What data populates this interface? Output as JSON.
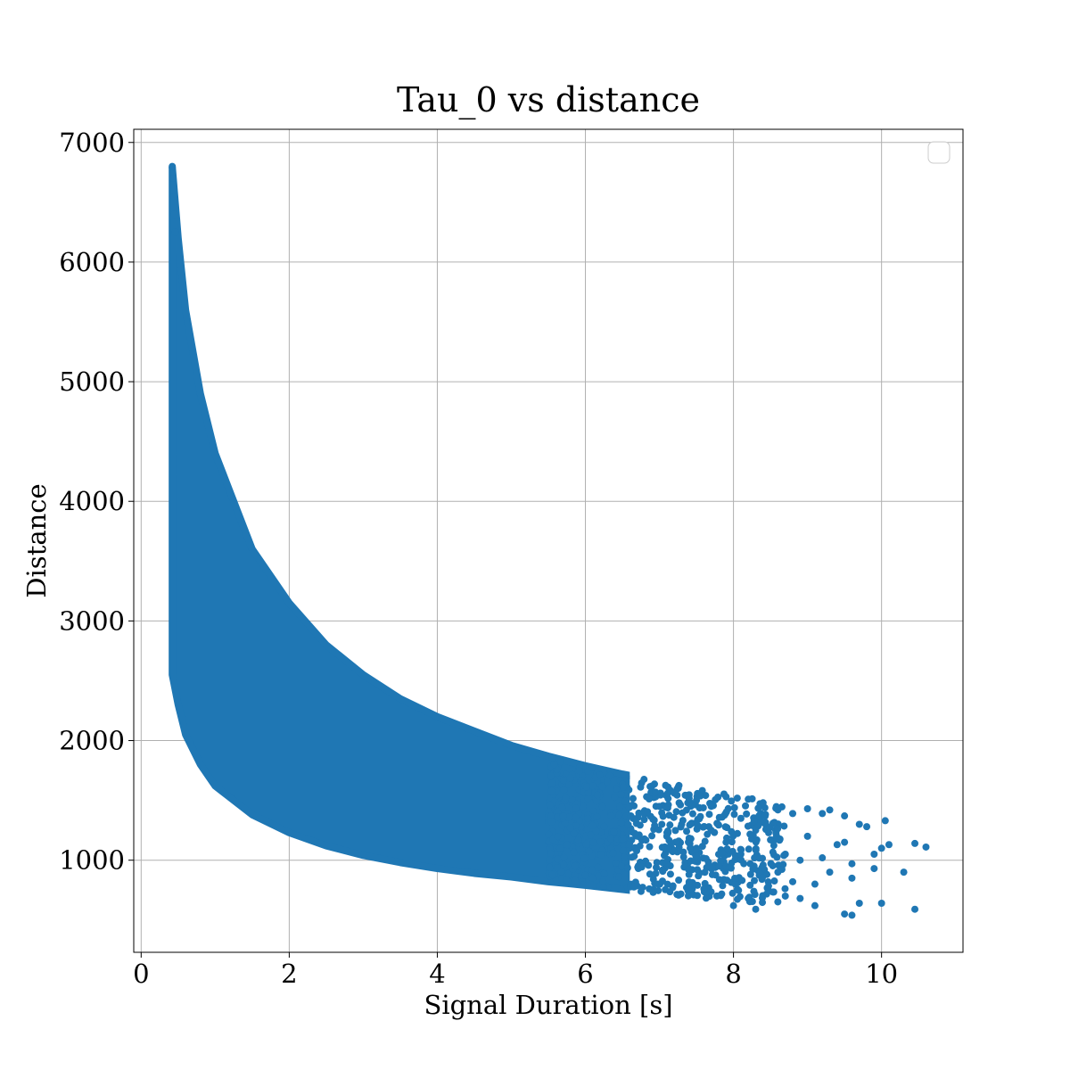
{
  "chart_data": {
    "type": "scatter",
    "title": "Tau_0 vs distance",
    "xlabel": "Signal Duration [s]",
    "ylabel": "Distance",
    "xlim": [
      -0.1,
      11.1
    ],
    "ylim": [
      230,
      7110
    ],
    "xticks": [
      0,
      2,
      4,
      6,
      8,
      10
    ],
    "yticks": [
      1000,
      2000,
      3000,
      4000,
      5000,
      6000,
      7000
    ],
    "grid": true,
    "legend": {
      "placement": "upper-right",
      "entries": []
    },
    "marker_color": "#1f77b4",
    "envelope": {
      "description_upper": [
        [
          0.42,
          6800
        ],
        [
          0.5,
          6200
        ],
        [
          0.6,
          5600
        ],
        [
          0.8,
          4900
        ],
        [
          1.0,
          4400
        ],
        [
          1.5,
          3600
        ],
        [
          2.0,
          3150
        ],
        [
          2.5,
          2800
        ],
        [
          3.0,
          2550
        ],
        [
          3.5,
          2350
        ],
        [
          4.0,
          2200
        ],
        [
          4.5,
          2080
        ],
        [
          5.0,
          1960
        ],
        [
          5.5,
          1870
        ],
        [
          6.0,
          1790
        ],
        [
          6.5,
          1720
        ],
        [
          7.0,
          1660
        ],
        [
          7.5,
          1600
        ],
        [
          8.0,
          1540
        ],
        [
          8.5,
          1490
        ],
        [
          9.0,
          1440
        ],
        [
          9.5,
          1380
        ],
        [
          10.0,
          1320
        ]
      ],
      "description_lower": [
        [
          0.42,
          2550
        ],
        [
          0.5,
          2300
        ],
        [
          0.6,
          2050
        ],
        [
          0.8,
          1800
        ],
        [
          1.0,
          1620
        ],
        [
          1.5,
          1380
        ],
        [
          2.0,
          1230
        ],
        [
          2.5,
          1120
        ],
        [
          3.0,
          1040
        ],
        [
          3.5,
          980
        ],
        [
          4.0,
          930
        ],
        [
          4.5,
          890
        ],
        [
          5.0,
          860
        ],
        [
          5.5,
          820
        ],
        [
          6.0,
          790
        ],
        [
          7.0,
          720
        ],
        [
          8.0,
          660
        ],
        [
          9.0,
          600
        ],
        [
          10.0,
          560
        ]
      ]
    },
    "dense_points": [
      [
        0.42,
        6790
      ],
      [
        0.43,
        6700
      ],
      [
        0.44,
        6550
      ],
      [
        0.45,
        6400
      ],
      [
        0.46,
        6250
      ]
    ],
    "outlier_points": [
      [
        6.9,
        1620
      ],
      [
        7.0,
        1450
      ],
      [
        7.1,
        1200
      ],
      [
        7.1,
        980
      ],
      [
        7.2,
        1560
      ],
      [
        7.3,
        1300
      ],
      [
        7.4,
        880
      ],
      [
        7.5,
        1500
      ],
      [
        7.5,
        1100
      ],
      [
        7.6,
        760
      ],
      [
        7.7,
        1450
      ],
      [
        7.7,
        1250
      ],
      [
        7.8,
        950
      ],
      [
        7.9,
        1530
      ],
      [
        7.9,
        1150
      ],
      [
        8.0,
        620
      ],
      [
        8.1,
        1350
      ],
      [
        8.1,
        1050
      ],
      [
        8.2,
        1510
      ],
      [
        8.2,
        680
      ],
      [
        8.3,
        1250
      ],
      [
        8.3,
        590
      ],
      [
        8.4,
        1480
      ],
      [
        8.4,
        960
      ],
      [
        8.5,
        1170
      ],
      [
        8.6,
        1420
      ],
      [
        8.6,
        900
      ],
      [
        8.7,
        1050
      ],
      [
        8.7,
        700
      ],
      [
        8.8,
        1390
      ],
      [
        8.8,
        820
      ],
      [
        8.9,
        1000
      ],
      [
        8.9,
        680
      ],
      [
        9.0,
        1430
      ],
      [
        9.0,
        1200
      ],
      [
        9.1,
        800
      ],
      [
        9.1,
        620
      ],
      [
        9.2,
        1390
      ],
      [
        9.2,
        1020
      ],
      [
        9.3,
        1420
      ],
      [
        9.3,
        900
      ],
      [
        9.4,
        1130
      ],
      [
        9.5,
        1370
      ],
      [
        9.5,
        1150
      ],
      [
        9.5,
        550
      ],
      [
        9.6,
        970
      ],
      [
        9.6,
        850
      ],
      [
        9.6,
        540
      ],
      [
        9.7,
        1300
      ],
      [
        9.7,
        640
      ],
      [
        9.8,
        1280
      ],
      [
        9.9,
        930
      ],
      [
        9.9,
        1050
      ],
      [
        10.0,
        1100
      ],
      [
        10.0,
        640
      ],
      [
        10.05,
        1330
      ],
      [
        10.1,
        1130
      ],
      [
        10.3,
        900
      ],
      [
        10.45,
        590
      ],
      [
        10.45,
        1140
      ],
      [
        10.6,
        1110
      ]
    ]
  }
}
